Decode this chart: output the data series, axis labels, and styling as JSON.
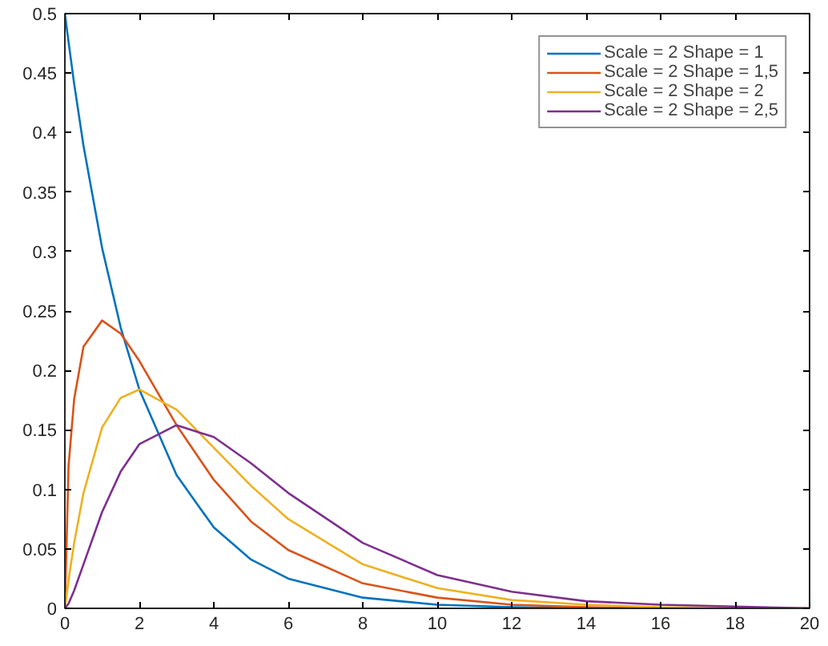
{
  "chart_data": {
    "type": "line",
    "x": [
      0,
      0.1,
      0.25,
      0.5,
      1,
      1.5,
      2,
      3,
      4,
      5,
      6,
      8,
      10,
      12,
      14,
      16,
      20
    ],
    "series": [
      {
        "name": "Scale = 2 Shape = 1",
        "color": "#0072bd",
        "values": [
          0.5,
          0.476,
          0.441,
          0.389,
          0.303,
          0.236,
          0.184,
          0.112,
          0.068,
          0.041,
          0.025,
          0.009,
          0.003,
          0.001,
          0,
          0,
          0
        ]
      },
      {
        "name": "Scale = 2 Shape = 1,5",
        "color": "#d95319",
        "values": [
          0,
          0.12,
          0.176,
          0.22,
          0.242,
          0.231,
          0.208,
          0.154,
          0.108,
          0.073,
          0.049,
          0.021,
          0.009,
          0.003,
          0.001,
          0,
          0
        ]
      },
      {
        "name": "Scale = 2 Shape = 2",
        "color": "#edb120",
        "values": [
          0,
          0.024,
          0.055,
          0.097,
          0.152,
          0.177,
          0.184,
          0.167,
          0.135,
          0.103,
          0.075,
          0.037,
          0.017,
          0.007,
          0.003,
          0.001,
          0
        ]
      },
      {
        "name": "Scale = 2 Shape = 2,5",
        "color": "#7e2f8e",
        "values": [
          0,
          0.004,
          0.015,
          0.037,
          0.081,
          0.115,
          0.138,
          0.154,
          0.144,
          0.122,
          0.097,
          0.055,
          0.028,
          0.014,
          0.006,
          0.003,
          0
        ]
      }
    ],
    "xlim": [
      0,
      20
    ],
    "xticks": [
      0,
      2,
      4,
      6,
      8,
      10,
      12,
      14,
      16,
      18,
      20
    ],
    "ylim": [
      0,
      0.5
    ],
    "yticks": [
      0,
      0.05,
      0.1,
      0.15,
      0.2,
      0.25,
      0.3,
      0.35,
      0.4,
      0.45,
      0.5
    ],
    "grid": false,
    "legend": "top right",
    "line_style": "solid"
  }
}
